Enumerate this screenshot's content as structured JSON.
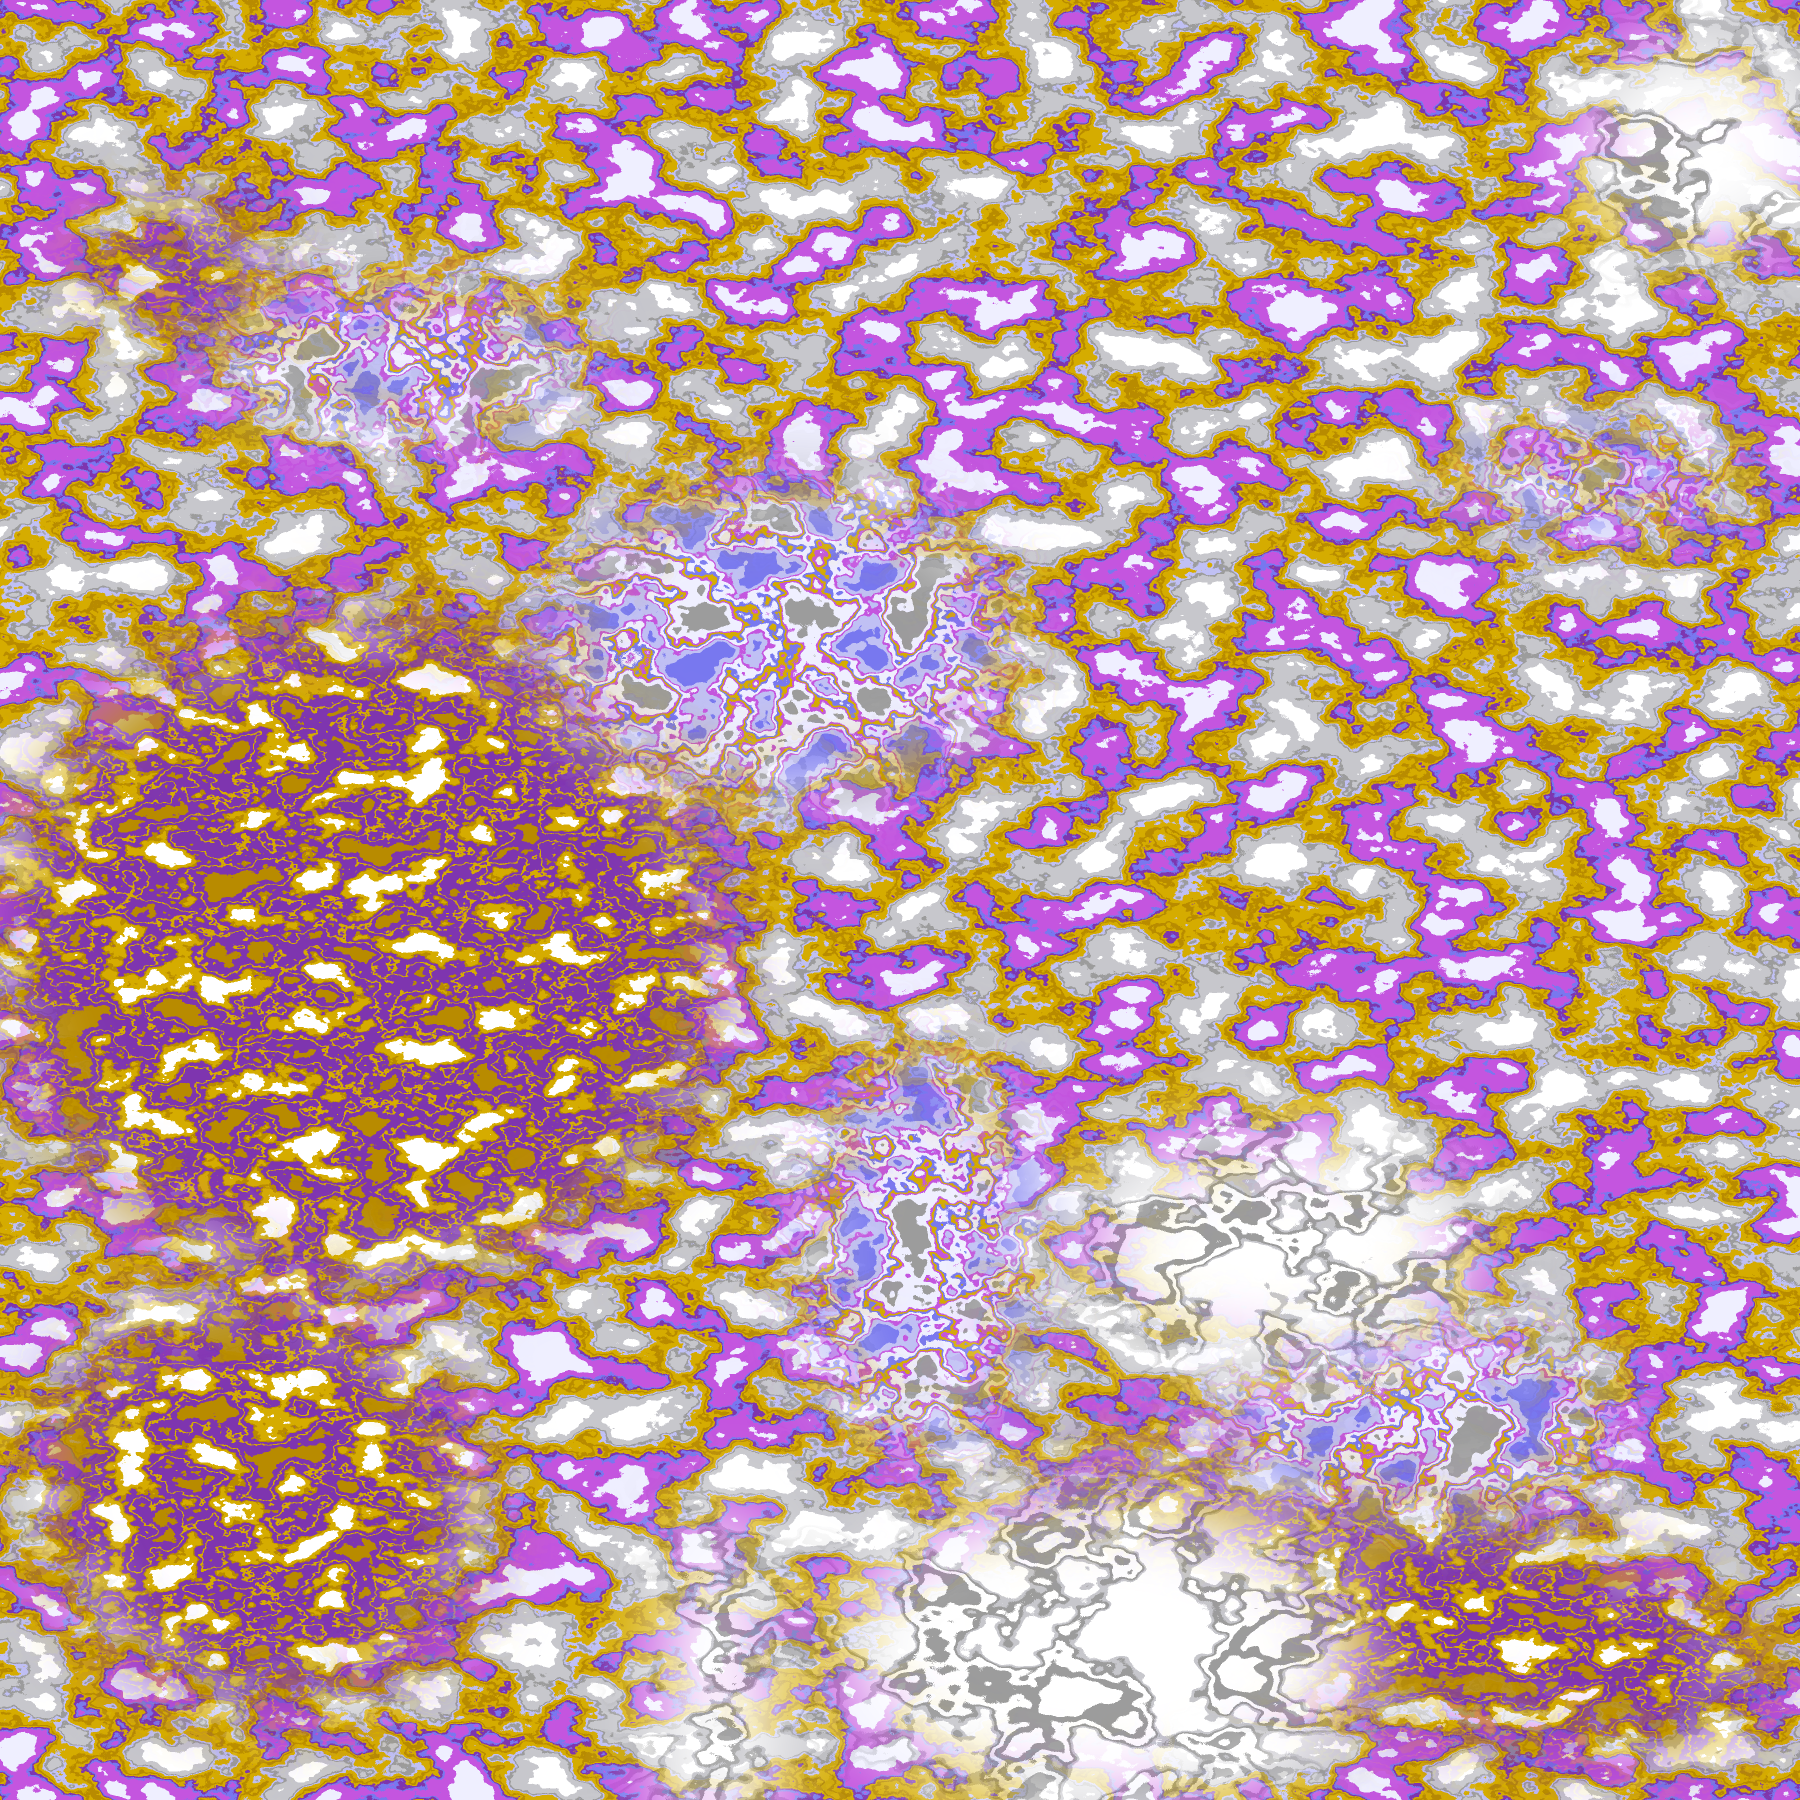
{
  "image": {
    "kind": "false-color satellite cloud classification",
    "palette": {
      "clear": "#ffffff",
      "light_gray": "#c8c8cc",
      "gray": "#9c9c9c",
      "lavender": "#c0c0f4",
      "gold": "#d6ac00",
      "dark_gold": "#b88c00",
      "purple": "#7f35b0",
      "periwinkle": "#7878f0",
      "magenta": "#c456e0",
      "pale_white": "#f0f0ff"
    },
    "base_order": [
      "clear",
      "light_gray",
      "gray",
      "lavender",
      "gold",
      "gold",
      "dark_gold",
      "gold",
      "purple",
      "periwinkle",
      "magenta",
      "pale_white"
    ],
    "purple_order": [
      "clear",
      "gold",
      "dark_gold",
      "purple",
      "purple",
      "purple",
      "gold",
      "purple",
      "purple",
      "dark_gold"
    ],
    "clear_order": [
      "clear",
      "clear",
      "clear",
      "clear",
      "light_gray",
      "gray",
      "clear",
      "clear",
      "gray",
      "clear"
    ],
    "convective_order": [
      "periwinkle",
      "lavender",
      "magenta",
      "pale_white",
      "pale_white",
      "periwinkle",
      "gold",
      "magenta",
      "pale_white",
      "gray"
    ]
  }
}
